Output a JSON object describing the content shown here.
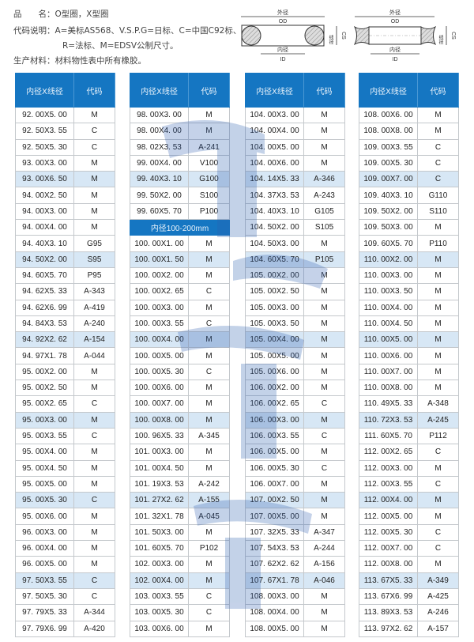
{
  "info": {
    "line1": "品　　名：O型圈，X型圈",
    "line2": "代码说明：A=美标AS568、V.S.P.G=日标、C=中国C92标、",
    "line3": "R=法标、M=EDSV公制尺寸。",
    "line4": "生产材料：材料物性表中所有橡胶。"
  },
  "diagrams": {
    "od_cn": "外径",
    "od": "OD",
    "id_cn": "内径",
    "id": "ID",
    "cs_cn": "线径",
    "cs": "CS"
  },
  "colors": {
    "header": "#1576c2",
    "highlight": "#d7e7f5"
  },
  "table_headers": {
    "size": "内径X线径",
    "code": "代码"
  },
  "columns": [
    [
      [
        "92. 00X5. 00",
        "M"
      ],
      [
        "92. 50X3. 55",
        "C"
      ],
      [
        "92. 50X5. 30",
        "C"
      ],
      [
        "93. 00X3. 00",
        "M"
      ],
      [
        "93. 00X6. 50",
        "M"
      ],
      [
        "94. 00X2. 50",
        "M"
      ],
      [
        "94. 00X3. 00",
        "M"
      ],
      [
        "94. 00X4. 00",
        "M"
      ],
      [
        "94. 40X3. 10",
        "G95"
      ],
      [
        "94. 50X2. 00",
        "S95"
      ],
      [
        "94. 60X5. 70",
        "P95"
      ],
      [
        "94. 62X5. 33",
        "A-343"
      ],
      [
        "94. 62X6. 99",
        "A-419"
      ],
      [
        "94. 84X3. 53",
        "A-240"
      ],
      [
        "94. 92X2. 62",
        "A-154"
      ],
      [
        "94. 97X1. 78",
        "A-044"
      ],
      [
        "95. 00X2. 00",
        "M"
      ],
      [
        "95. 00X2. 50",
        "M"
      ],
      [
        "95. 00X2. 65",
        "C"
      ],
      [
        "95. 00X3. 00",
        "M"
      ],
      [
        "95. 00X3. 55",
        "C"
      ],
      [
        "95. 00X4. 00",
        "M"
      ],
      [
        "95. 00X4. 50",
        "M"
      ],
      [
        "95. 00X5. 00",
        "M"
      ],
      [
        "95. 00X5. 30",
        "C"
      ],
      [
        "95. 00X6. 00",
        "M"
      ],
      [
        "96. 00X3. 00",
        "M"
      ],
      [
        "96. 00X4. 00",
        "M"
      ],
      [
        "96. 00X5. 00",
        "M"
      ],
      [
        "97. 50X3. 55",
        "C"
      ],
      [
        "97. 50X5. 30",
        "C"
      ],
      [
        "97. 79X5. 33",
        "A-344"
      ],
      [
        "97. 79X6. 99",
        "A-420"
      ]
    ],
    [
      [
        "98. 00X3. 00",
        "M"
      ],
      [
        "98. 00X4. 00",
        "M"
      ],
      [
        "98. 02X3. 53",
        "A-241"
      ],
      [
        "99. 00X4. 00",
        "V100"
      ],
      [
        "99. 40X3. 10",
        "G100"
      ],
      [
        "99. 50X2. 00",
        "S100"
      ],
      [
        "99. 60X5. 70",
        "P100"
      ],
      [
        "内径100-200mm"
      ],
      [
        "100. 00X1. 00",
        "M"
      ],
      [
        "100. 00X1. 50",
        "M"
      ],
      [
        "100. 00X2. 00",
        "M"
      ],
      [
        "100. 00X2. 65",
        "C"
      ],
      [
        "100. 00X3. 00",
        "M"
      ],
      [
        "100. 00X3. 55",
        "C"
      ],
      [
        "100. 00X4. 00",
        "M"
      ],
      [
        "100. 00X5. 00",
        "M"
      ],
      [
        "100. 00X5. 30",
        "C"
      ],
      [
        "100. 00X6. 00",
        "M"
      ],
      [
        "100. 00X7. 00",
        "M"
      ],
      [
        "100. 00X8. 00",
        "M"
      ],
      [
        "100. 96X5. 33",
        "A-345"
      ],
      [
        "101. 00X3. 00",
        "M"
      ],
      [
        "101. 00X4. 50",
        "M"
      ],
      [
        "101. 19X3. 53",
        "A-242"
      ],
      [
        "101. 27X2. 62",
        "A-155"
      ],
      [
        "101. 32X1. 78",
        "A-045"
      ],
      [
        "101. 50X3. 00",
        "M"
      ],
      [
        "101. 60X5. 70",
        "P102"
      ],
      [
        "102. 00X3. 00",
        "M"
      ],
      [
        "102. 00X4. 00",
        "M"
      ],
      [
        "103. 00X3. 55",
        "C"
      ],
      [
        "103. 00X5. 30",
        "C"
      ],
      [
        "103. 00X6. 00",
        "M"
      ]
    ],
    [
      [
        "104. 00X3. 00",
        "M"
      ],
      [
        "104. 00X4. 00",
        "M"
      ],
      [
        "104. 00X5. 00",
        "M"
      ],
      [
        "104. 00X6. 00",
        "M"
      ],
      [
        "104. 14X5. 33",
        "A-346"
      ],
      [
        "104. 37X3. 53",
        "A-243"
      ],
      [
        "104. 40X3. 10",
        "G105"
      ],
      [
        "104. 50X2. 00",
        "S105"
      ],
      [
        "104. 50X3. 00",
        "M"
      ],
      [
        "104. 60X5. 70",
        "P105"
      ],
      [
        "105. 00X2. 00",
        "M"
      ],
      [
        "105. 00X2. 50",
        "M"
      ],
      [
        "105. 00X3. 00",
        "M"
      ],
      [
        "105. 00X3. 50",
        "M"
      ],
      [
        "105. 00X4. 00",
        "M"
      ],
      [
        "105. 00X5. 00",
        "M"
      ],
      [
        "105. 00X6. 00",
        "M"
      ],
      [
        "106. 00X2. 00",
        "M"
      ],
      [
        "106. 00X2. 65",
        "C"
      ],
      [
        "106. 00X3. 00",
        "M"
      ],
      [
        "106. 00X3. 55",
        "C"
      ],
      [
        "106. 00X5. 00",
        "M"
      ],
      [
        "106. 00X5. 30",
        "C"
      ],
      [
        "106. 00X7. 00",
        "M"
      ],
      [
        "107. 00X2. 50",
        "M"
      ],
      [
        "107. 00X5. 00",
        "M"
      ],
      [
        "107. 32X5. 33",
        "A-347"
      ],
      [
        "107. 54X3. 53",
        "A-244"
      ],
      [
        "107. 62X2. 62",
        "A-156"
      ],
      [
        "107. 67X1. 78",
        "A-046"
      ],
      [
        "108. 00X3. 00",
        "M"
      ],
      [
        "108. 00X4. 00",
        "M"
      ],
      [
        "108. 00X5. 00",
        "M"
      ]
    ],
    [
      [
        "108. 00X6. 00",
        "M"
      ],
      [
        "108. 00X8. 00",
        "M"
      ],
      [
        "109. 00X3. 55",
        "C"
      ],
      [
        "109. 00X5. 30",
        "C"
      ],
      [
        "109. 00X7. 00",
        "C"
      ],
      [
        "109. 40X3. 10",
        "G110"
      ],
      [
        "109. 50X2. 00",
        "S110"
      ],
      [
        "109. 50X3. 00",
        "M"
      ],
      [
        "109. 60X5. 70",
        "P110"
      ],
      [
        "110. 00X2. 00",
        "M"
      ],
      [
        "110. 00X3. 00",
        "M"
      ],
      [
        "110. 00X3. 50",
        "M"
      ],
      [
        "110. 00X4. 00",
        "M"
      ],
      [
        "110. 00X4. 50",
        "M"
      ],
      [
        "110. 00X5. 00",
        "M"
      ],
      [
        "110. 00X6. 00",
        "M"
      ],
      [
        "110. 00X7. 00",
        "M"
      ],
      [
        "110. 00X8. 00",
        "M"
      ],
      [
        "110. 49X5. 33",
        "A-348"
      ],
      [
        "110. 72X3. 53",
        "A-245"
      ],
      [
        "111. 60X5. 70",
        "P112"
      ],
      [
        "112. 00X2. 65",
        "C"
      ],
      [
        "112. 00X3. 00",
        "M"
      ],
      [
        "112. 00X3. 55",
        "C"
      ],
      [
        "112. 00X4. 00",
        "M"
      ],
      [
        "112. 00X5. 00",
        "M"
      ],
      [
        "112. 00X5. 30",
        "C"
      ],
      [
        "112. 00X7. 00",
        "C"
      ],
      [
        "112. 00X8. 00",
        "M"
      ],
      [
        "113. 67X5. 33",
        "A-349"
      ],
      [
        "113. 67X6. 99",
        "A-425"
      ],
      [
        "113. 89X3. 53",
        "A-246"
      ],
      [
        "113. 97X2. 62",
        "A-157"
      ]
    ]
  ]
}
